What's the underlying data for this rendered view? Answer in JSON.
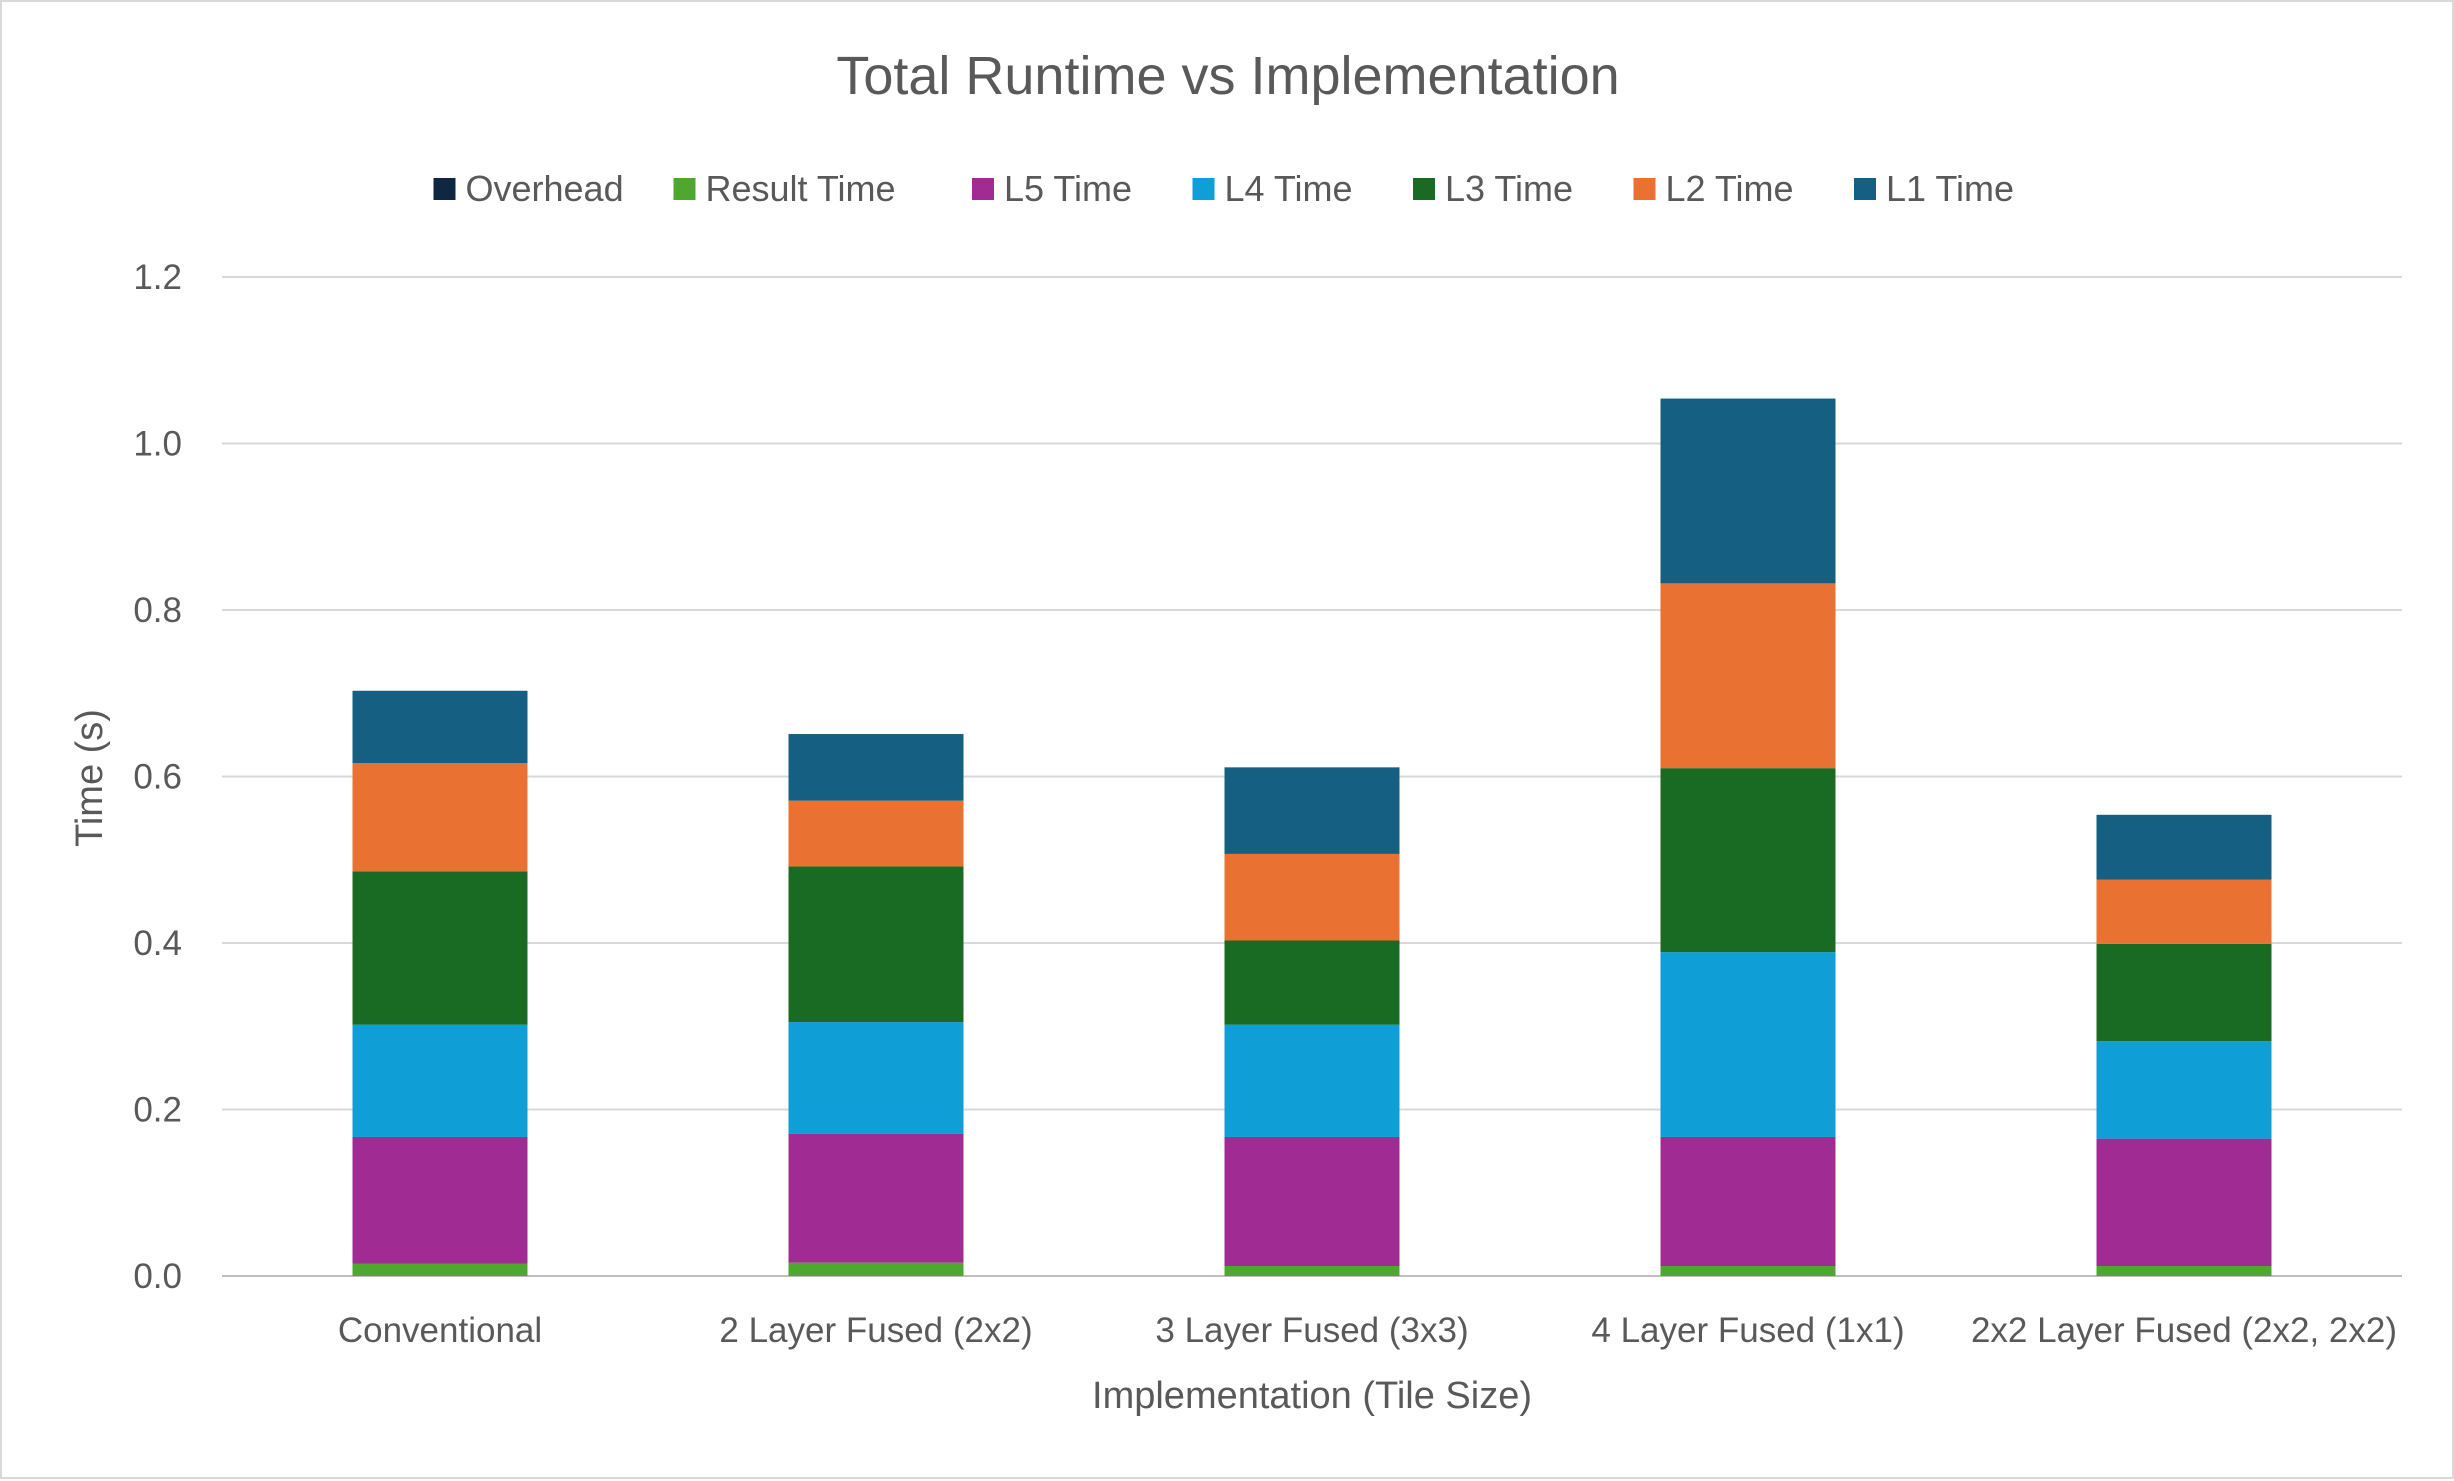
{
  "chart_data": {
    "type": "bar",
    "stacked": true,
    "title": "Total Runtime vs Implementation",
    "xlabel": "Implementation (Tile Size)",
    "ylabel": "Time (s)",
    "ylim": [
      0,
      1.2
    ],
    "yticks": [
      "0.0",
      "0.2",
      "0.4",
      "0.6",
      "0.8",
      "1.0",
      "1.2"
    ],
    "grid": true,
    "legend_position": "top",
    "categories": [
      "Conventional",
      "2 Layer Fused (2x2)",
      "3 Layer Fused (3x3)",
      "4 Layer Fused (1x1)",
      "2x2 Layer Fused (2x2, 2x2)"
    ],
    "legend_order": [
      "Overhead",
      "Result Time",
      "L5 Time",
      "L4 Time",
      "L3 Time",
      "L2 Time",
      "L1 Time"
    ],
    "series": [
      {
        "name": "Overhead",
        "color": "#0e2841",
        "values": [
          0.0,
          0.0,
          0.0,
          0.0,
          0.0
        ]
      },
      {
        "name": "Result Time",
        "color": "#4ea72e",
        "values": [
          0.015,
          0.016,
          0.012,
          0.012,
          0.012
        ]
      },
      {
        "name": "L5 Time",
        "color": "#a02b93",
        "values": [
          0.152,
          0.155,
          0.155,
          0.155,
          0.153
        ]
      },
      {
        "name": "L4 Time",
        "color": "#0f9ed5",
        "values": [
          0.135,
          0.134,
          0.135,
          0.222,
          0.117
        ]
      },
      {
        "name": "L3 Time",
        "color": "#196b24",
        "values": [
          0.184,
          0.187,
          0.101,
          0.221,
          0.117
        ]
      },
      {
        "name": "L2 Time",
        "color": "#e97132",
        "values": [
          0.13,
          0.079,
          0.104,
          0.222,
          0.077
        ]
      },
      {
        "name": "L1 Time",
        "color": "#156082",
        "values": [
          0.087,
          0.08,
          0.104,
          0.222,
          0.078
        ]
      }
    ]
  }
}
